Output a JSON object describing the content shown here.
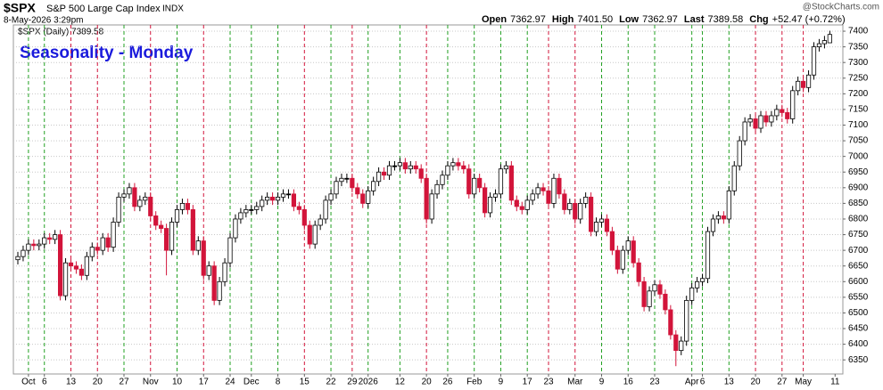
{
  "header": {
    "symbol": "$SPX",
    "name": "S&P 500 Large Cap Index",
    "exchange": "INDX",
    "date": "8-May-2026 3:29pm",
    "watermark": "@StockCharts.com",
    "stats": [
      {
        "label": "Open",
        "value": "7362.97"
      },
      {
        "label": "High",
        "value": "7401.50"
      },
      {
        "label": "Low",
        "value": "7362.97"
      },
      {
        "label": "Last",
        "value": "7389.58"
      },
      {
        "label": "Chg",
        "value": "+52.47 (+0.72%)"
      }
    ]
  },
  "chart_data": {
    "type": "candlestick",
    "title": "Seasonality - Monday",
    "legend_label": "$SPX (Daily) 7389.58",
    "categories": [
      null,
      null,
      "Oct",
      null,
      null,
      "6",
      null,
      null,
      null,
      null,
      "13",
      null,
      null,
      null,
      null,
      "20",
      null,
      null,
      null,
      null,
      "27",
      null,
      null,
      null,
      null,
      "Nov",
      null,
      null,
      null,
      null,
      "10",
      null,
      null,
      null,
      null,
      "17",
      null,
      null,
      null,
      null,
      "24",
      null,
      null,
      null,
      "Dec",
      null,
      null,
      null,
      null,
      "8",
      null,
      null,
      null,
      null,
      "15",
      null,
      null,
      null,
      null,
      "22",
      null,
      null,
      null,
      "29",
      null,
      null,
      "2026",
      null,
      null,
      null,
      null,
      null,
      "12",
      null,
      null,
      null,
      null,
      "20",
      null,
      null,
      null,
      "26",
      null,
      null,
      null,
      null,
      "Feb",
      null,
      null,
      null,
      null,
      "9",
      null,
      null,
      null,
      null,
      "17",
      null,
      null,
      null,
      "23",
      null,
      null,
      null,
      null,
      "Mar",
      null,
      null,
      null,
      null,
      "9",
      null,
      null,
      null,
      null,
      "16",
      null,
      null,
      null,
      null,
      "23",
      null,
      null,
      null,
      null,
      null,
      null,
      "Apr",
      null,
      "6",
      null,
      null,
      null,
      null,
      "13",
      null,
      null,
      null,
      null,
      "20",
      null,
      null,
      null,
      null,
      "27",
      null,
      null,
      null,
      "May",
      null,
      null,
      null,
      null,
      null,
      "11"
    ],
    "series": [
      {
        "name": "$SPX",
        "up_color": "#000000",
        "down_color": "#d2143a",
        "open": [
          6670,
          6680,
          6700,
          6720,
          6715,
          6720,
          6740,
          6735,
          6750,
          6555,
          6660,
          6650,
          6640,
          6620,
          6680,
          6710,
          6700,
          6740,
          6710,
          6790,
          6870,
          6880,
          6900,
          6840,
          6860,
          6870,
          6810,
          6780,
          6770,
          6700,
          6790,
          6830,
          6850,
          6830,
          6700,
          6730,
          6620,
          6650,
          6540,
          6600,
          6660,
          6740,
          6800,
          6820,
          6830,
          6830,
          6840,
          6860,
          6870,
          6860,
          6870,
          6880,
          6880,
          6840,
          6830,
          6780,
          6720,
          6780,
          6800,
          6860,
          6880,
          6920,
          6930,
          6930,
          6900,
          6880,
          6850,
          6890,
          6920,
          6950,
          6940,
          6970,
          6970,
          6980,
          6960,
          6970,
          6960,
          6930,
          6800,
          6880,
          6910,
          6940,
          6970,
          6980,
          6970,
          6960,
          6880,
          6930,
          6900,
          6820,
          6870,
          6880,
          6960,
          6970,
          6860,
          6840,
          6830,
          6860,
          6880,
          6900,
          6890,
          6850,
          6930,
          6880,
          6830,
          6850,
          6800,
          6850,
          6870,
          6760,
          6790,
          6800,
          6760,
          6700,
          6640,
          6700,
          6730,
          6660,
          6600,
          6520,
          6570,
          6590,
          6560,
          6510,
          6430,
          6380,
          6410,
          6540,
          6580,
          6600,
          6610,
          6760,
          6800,
          6810,
          6800,
          6890,
          6970,
          7050,
          7110,
          7120,
          7090,
          7130,
          7110,
          7130,
          7150,
          7140,
          7120,
          7210,
          7240,
          7220,
          7260,
          7350,
          7360,
          7362.97,
          null
        ],
        "high": [
          6695,
          6715,
          6735,
          6735,
          6735,
          6755,
          6755,
          6765,
          6765,
          6675,
          6675,
          6665,
          6655,
          6695,
          6725,
          6725,
          6755,
          6755,
          6805,
          6885,
          6895,
          6915,
          6915,
          6875,
          6885,
          6885,
          6825,
          6795,
          6785,
          6805,
          6845,
          6865,
          6865,
          6845,
          6745,
          6745,
          6665,
          6665,
          6615,
          6675,
          6755,
          6815,
          6835,
          6845,
          6845,
          6855,
          6875,
          6885,
          6885,
          6885,
          6895,
          6895,
          6895,
          6855,
          6845,
          6795,
          6795,
          6815,
          6875,
          6895,
          6935,
          6945,
          6945,
          6945,
          6915,
          6895,
          6905,
          6935,
          6965,
          6965,
          6985,
          6985,
          6995,
          6995,
          6985,
          6985,
          6975,
          6945,
          6895,
          6925,
          6955,
          6985,
          6995,
          6995,
          6985,
          6975,
          6945,
          6945,
          6915,
          6885,
          6895,
          6975,
          6985,
          6985,
          6875,
          6855,
          6875,
          6895,
          6915,
          6915,
          6905,
          6945,
          6945,
          6895,
          6865,
          6865,
          6865,
          6885,
          6885,
          6805,
          6815,
          6815,
          6775,
          6715,
          6715,
          6745,
          6745,
          6675,
          6615,
          6585,
          6605,
          6605,
          6575,
          6525,
          6445,
          6425,
          6555,
          6595,
          6615,
          6625,
          6775,
          6815,
          6825,
          6825,
          6905,
          6985,
          7065,
          7125,
          7135,
          7135,
          7145,
          7145,
          7145,
          7165,
          7165,
          7155,
          7225,
          7255,
          7255,
          7275,
          7365,
          7375,
          7385,
          7401.5,
          null
        ],
        "low": [
          6655,
          6665,
          6685,
          6700,
          6700,
          6705,
          6720,
          6720,
          6540,
          6540,
          6635,
          6625,
          6605,
          6605,
          6665,
          6685,
          6685,
          6695,
          6695,
          6775,
          6855,
          6865,
          6825,
          6825,
          6845,
          6795,
          6765,
          6755,
          6620,
          6685,
          6775,
          6815,
          6815,
          6685,
          6685,
          6605,
          6605,
          6525,
          6525,
          6585,
          6645,
          6725,
          6785,
          6805,
          6815,
          6815,
          6825,
          6845,
          6845,
          6845,
          6855,
          6865,
          6825,
          6815,
          6765,
          6705,
          6705,
          6765,
          6785,
          6845,
          6865,
          6905,
          6915,
          6885,
          6865,
          6835,
          6835,
          6875,
          6905,
          6925,
          6925,
          6955,
          6955,
          6945,
          6945,
          6945,
          6915,
          6785,
          6785,
          6865,
          6895,
          6925,
          6955,
          6955,
          6945,
          6865,
          6865,
          6885,
          6805,
          6805,
          6855,
          6865,
          6945,
          6845,
          6825,
          6815,
          6815,
          6845,
          6865,
          6875,
          6835,
          6835,
          6865,
          6815,
          6815,
          6785,
          6785,
          6835,
          6745,
          6745,
          6775,
          6745,
          6685,
          6625,
          6625,
          6685,
          6645,
          6585,
          6505,
          6505,
          6555,
          6545,
          6495,
          6415,
          6330,
          6365,
          6395,
          6525,
          6565,
          6585,
          6595,
          6745,
          6785,
          6785,
          6785,
          6875,
          6955,
          7035,
          7095,
          7075,
          7075,
          7095,
          7095,
          7115,
          7125,
          7105,
          7105,
          7195,
          7205,
          7205,
          7245,
          7335,
          7345,
          7362.97,
          null
        ],
        "close": [
          6680,
          6700,
          6720,
          6715,
          6720,
          6740,
          6735,
          6750,
          6555,
          6660,
          6650,
          6640,
          6620,
          6680,
          6710,
          6700,
          6740,
          6710,
          6790,
          6870,
          6880,
          6900,
          6840,
          6860,
          6870,
          6810,
          6780,
          6770,
          6700,
          6790,
          6830,
          6850,
          6830,
          6700,
          6730,
          6620,
          6650,
          6540,
          6600,
          6660,
          6740,
          6800,
          6820,
          6830,
          6830,
          6840,
          6860,
          6870,
          6860,
          6870,
          6880,
          6880,
          6840,
          6830,
          6780,
          6720,
          6780,
          6800,
          6860,
          6880,
          6920,
          6930,
          6930,
          6900,
          6880,
          6850,
          6890,
          6920,
          6950,
          6940,
          6970,
          6970,
          6980,
          6960,
          6970,
          6960,
          6930,
          6800,
          6880,
          6910,
          6940,
          6970,
          6980,
          6970,
          6960,
          6880,
          6930,
          6900,
          6820,
          6870,
          6880,
          6960,
          6970,
          6860,
          6840,
          6830,
          6860,
          6880,
          6900,
          6890,
          6850,
          6930,
          6880,
          6830,
          6850,
          6800,
          6850,
          6870,
          6760,
          6790,
          6800,
          6760,
          6700,
          6640,
          6700,
          6730,
          6660,
          6600,
          6520,
          6570,
          6590,
          6560,
          6510,
          6430,
          6380,
          6410,
          6540,
          6580,
          6600,
          6610,
          6760,
          6800,
          6810,
          6800,
          6890,
          6970,
          7050,
          7110,
          7120,
          7090,
          7130,
          7110,
          7130,
          7150,
          7140,
          7120,
          7210,
          7240,
          7220,
          7260,
          7350,
          7360,
          7370,
          7389.58,
          null
        ]
      }
    ],
    "ylim": [
      6305,
      7420
    ],
    "yticks": [
      6350,
      6400,
      6450,
      6500,
      6550,
      6600,
      6650,
      6700,
      6750,
      6800,
      6850,
      6900,
      6950,
      7000,
      7050,
      7100,
      7150,
      7200,
      7250,
      7300,
      7350,
      7400
    ],
    "grid": true,
    "up_line_color": "#22a022",
    "down_line_color": "#d2143a",
    "title_color": "#1a1adc"
  }
}
